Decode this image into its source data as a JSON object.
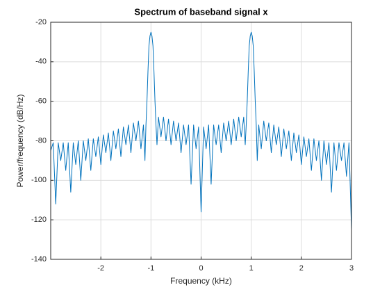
{
  "chart_data": {
    "type": "line",
    "title": "Spectrum of baseband signal x",
    "xlabel": "Frequency (kHz)",
    "ylabel": "Power/frequency (dB/Hz)",
    "xlim": [
      -3,
      3
    ],
    "xticks": [
      -2,
      -1,
      0,
      1,
      2,
      3
    ],
    "ylim": [
      -140,
      -20
    ],
    "yticks": [
      -140,
      -120,
      -100,
      -80,
      -60,
      -40,
      -20
    ],
    "grid": true,
    "x": [
      -3.0,
      -2.95,
      -2.9,
      -2.85,
      -2.8,
      -2.75,
      -2.7,
      -2.65,
      -2.6,
      -2.55,
      -2.5,
      -2.45,
      -2.4,
      -2.35,
      -2.3,
      -2.25,
      -2.2,
      -2.15,
      -2.1,
      -2.05,
      -2.0,
      -1.95,
      -1.9,
      -1.85,
      -1.8,
      -1.75,
      -1.7,
      -1.65,
      -1.6,
      -1.55,
      -1.5,
      -1.45,
      -1.4,
      -1.35,
      -1.3,
      -1.25,
      -1.2,
      -1.15,
      -1.12,
      -1.1,
      -1.08,
      -1.06,
      -1.04,
      -1.02,
      -1.0,
      -0.98,
      -0.96,
      -0.94,
      -0.92,
      -0.9,
      -0.88,
      -0.85,
      -0.8,
      -0.75,
      -0.7,
      -0.65,
      -0.6,
      -0.55,
      -0.5,
      -0.45,
      -0.4,
      -0.35,
      -0.3,
      -0.25,
      -0.2,
      -0.15,
      -0.1,
      -0.05,
      0.0,
      0.05,
      0.1,
      0.15,
      0.2,
      0.25,
      0.3,
      0.35,
      0.4,
      0.45,
      0.5,
      0.55,
      0.6,
      0.65,
      0.7,
      0.75,
      0.8,
      0.85,
      0.88,
      0.9,
      0.92,
      0.94,
      0.96,
      0.98,
      1.0,
      1.02,
      1.04,
      1.06,
      1.08,
      1.1,
      1.12,
      1.15,
      1.2,
      1.25,
      1.3,
      1.35,
      1.4,
      1.45,
      1.5,
      1.55,
      1.6,
      1.65,
      1.7,
      1.75,
      1.8,
      1.85,
      1.9,
      1.95,
      2.0,
      2.05,
      2.1,
      2.15,
      2.2,
      2.25,
      2.3,
      2.35,
      2.4,
      2.45,
      2.5,
      2.55,
      2.6,
      2.65,
      2.7,
      2.75,
      2.8,
      2.85,
      2.9,
      2.95,
      3.0
    ],
    "series": [
      {
        "color": "#0072bd",
        "values": [
          -85,
          -81,
          -112,
          -81,
          -90,
          -81,
          -95,
          -81,
          -106,
          -81,
          -92,
          -80,
          -100,
          -80,
          -90,
          -79,
          -95,
          -79,
          -88,
          -78,
          -92,
          -77,
          -86,
          -76,
          -90,
          -75,
          -84,
          -74,
          -88,
          -73,
          -82,
          -72,
          -86,
          -71,
          -80,
          -70,
          -84,
          -72,
          -90,
          -72,
          -60,
          -45,
          -32,
          -27,
          -25,
          -27,
          -32,
          -45,
          -60,
          -72,
          -82,
          -68,
          -78,
          -68,
          -80,
          -69,
          -82,
          -70,
          -80,
          -71,
          -86,
          -72,
          -82,
          -72,
          -102,
          -72,
          -84,
          -73,
          -116,
          -73,
          -84,
          -72,
          -102,
          -72,
          -82,
          -72,
          -86,
          -71,
          -80,
          -70,
          -82,
          -69,
          -80,
          -68,
          -78,
          -68,
          -82,
          -72,
          -60,
          -45,
          -32,
          -27,
          -25,
          -27,
          -32,
          -45,
          -60,
          -72,
          -90,
          -72,
          -84,
          -70,
          -80,
          -71,
          -86,
          -72,
          -82,
          -73,
          -88,
          -74,
          -84,
          -75,
          -90,
          -76,
          -86,
          -77,
          -92,
          -78,
          -88,
          -79,
          -95,
          -79,
          -90,
          -80,
          -100,
          -80,
          -92,
          -81,
          -106,
          -81,
          -95,
          -81,
          -90,
          -81,
          -98,
          -81,
          -125
        ]
      }
    ]
  }
}
